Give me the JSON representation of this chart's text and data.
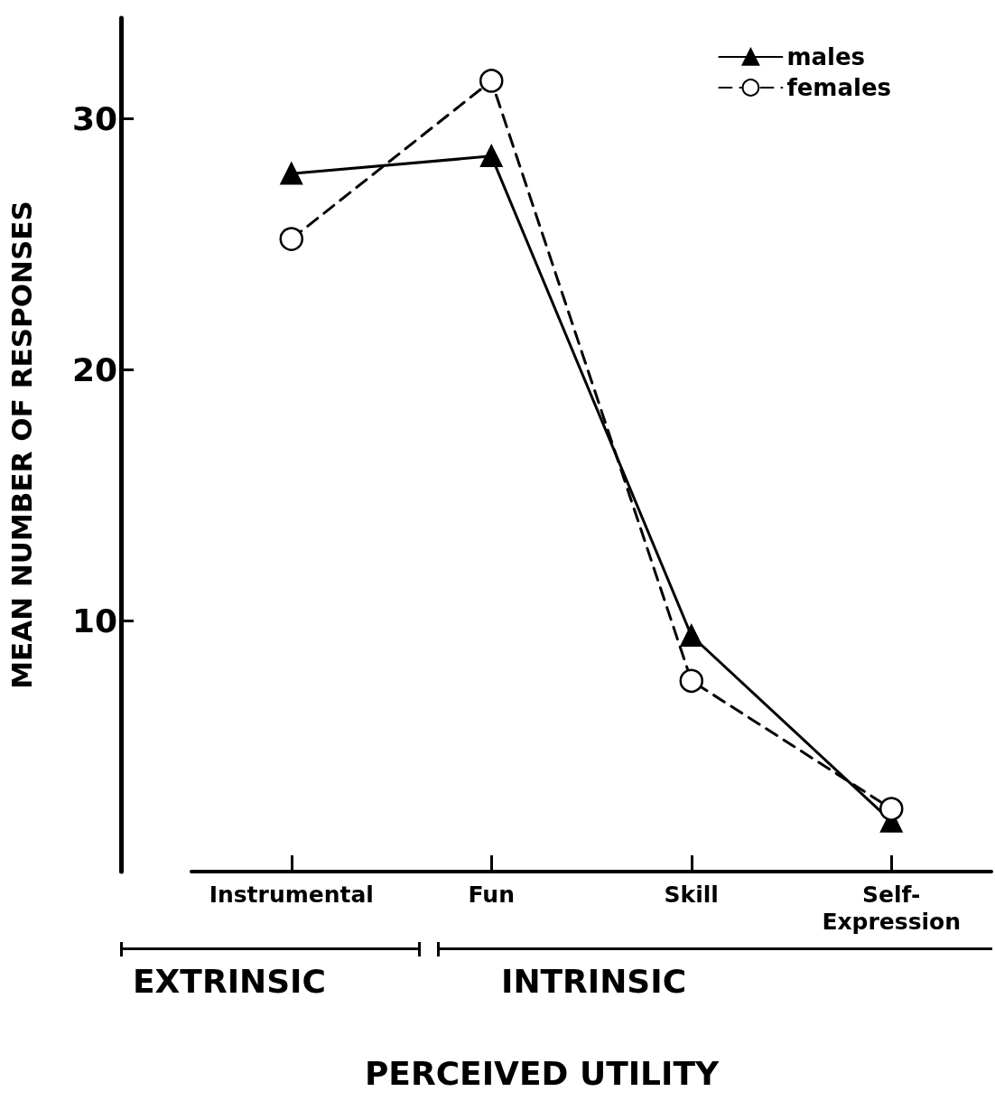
{
  "chart_data": {
    "type": "line",
    "xlabel": "PERCEIVED UTILITY",
    "ylabel": "MEAN NUMBER OF RESPONSES",
    "categories": [
      "Instrumental",
      "Fun",
      "Skill",
      "Self-\nExpression"
    ],
    "series": [
      {
        "name": "males",
        "color": "#000000",
        "marker": "triangle",
        "line_style": "solid",
        "values": [
          27.8,
          28.5,
          9.4,
          2.0
        ]
      },
      {
        "name": "females",
        "color": "#000000",
        "marker": "circle",
        "line_style": "dashed",
        "values": [
          25.2,
          31.5,
          7.6,
          2.5
        ]
      }
    ],
    "ylim": [
      0,
      34
    ],
    "yticks": [
      10,
      20,
      30
    ],
    "grid": false,
    "legend": "top right",
    "annotations": [
      "EXTRINSIC",
      "INTRINSIC"
    ]
  }
}
